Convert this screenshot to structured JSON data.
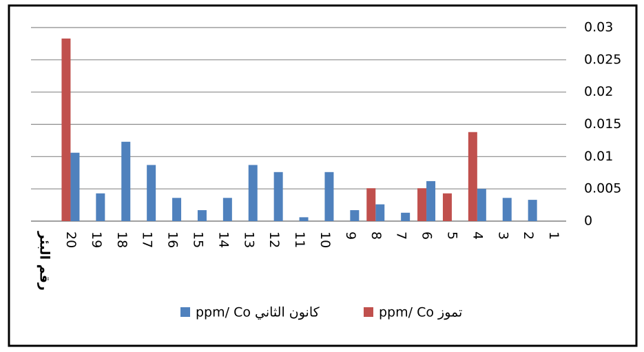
{
  "chart_data": {
    "type": "bar",
    "x_label": "رقم البئر",
    "categories": [
      "1",
      "2",
      "3",
      "4",
      "5",
      "6",
      "7",
      "8",
      "9",
      "10",
      "11",
      "12",
      "13",
      "14",
      "15",
      "16",
      "17",
      "18",
      "19",
      "20"
    ],
    "x_reversed": true,
    "y_axis_side": "right",
    "series": [
      {
        "name": "ppm/  Co كانون الثاني",
        "color": "#4f81bd",
        "values": [
          0,
          0.0033,
          0.0036,
          0.005,
          0,
          0.0062,
          0.0013,
          0.0026,
          0.0017,
          0.0076,
          0.0006,
          0.0076,
          0.0087,
          0.0036,
          0.0017,
          0.0036,
          0.0087,
          0.0123,
          0.0043,
          0.0106
        ]
      },
      {
        "name": "ppm/  Co تموز",
        "color": "#c0504d",
        "values": [
          0,
          0,
          0,
          0.0138,
          0.0043,
          0.0051,
          0,
          0.0051,
          0,
          0,
          0,
          0,
          0,
          0,
          0,
          0,
          0,
          0,
          0,
          0.0283
        ]
      }
    ],
    "ylim": [
      0,
      0.03
    ],
    "yticks": [
      0,
      0.005,
      0.01,
      0.015,
      0.02,
      0.025,
      0.03
    ],
    "grid": true,
    "legend": "bottom"
  }
}
